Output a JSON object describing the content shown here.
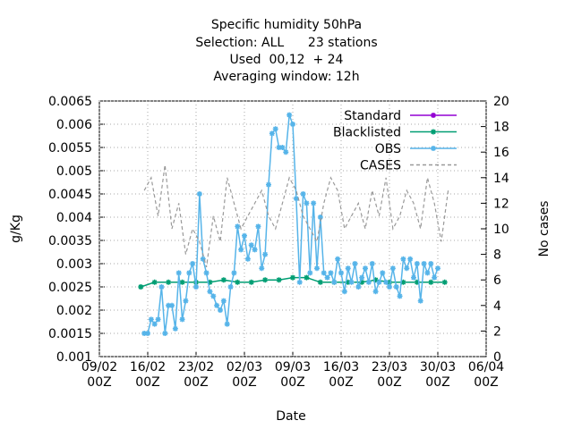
{
  "chart_data": {
    "type": "line",
    "title": [
      "Specific humidity 50hPa",
      "Selection: ALL      23 stations",
      "Used  00,12  + 24",
      "Averaging window: 12h"
    ],
    "xlabel": "Date",
    "ylabel": "g/Kg",
    "y2label": "No cases",
    "xlim": [
      0,
      56
    ],
    "xticks": [
      {
        "value": 0,
        "label": "09/02\n00Z"
      },
      {
        "value": 7,
        "label": "16/02\n00Z"
      },
      {
        "value": 14,
        "label": "23/02\n00Z"
      },
      {
        "value": 21,
        "label": "02/03\n00Z"
      },
      {
        "value": 28,
        "label": "09/03\n00Z"
      },
      {
        "value": 35,
        "label": "16/03\n00Z"
      },
      {
        "value": 42,
        "label": "23/03\n00Z"
      },
      {
        "value": 49,
        "label": "30/03\n00Z"
      },
      {
        "value": 56,
        "label": "06/04\n00Z"
      }
    ],
    "ylim": [
      0.001,
      0.0065
    ],
    "yticks": [
      0.001,
      0.0015,
      0.002,
      0.0025,
      0.003,
      0.0035,
      0.004,
      0.0045,
      0.005,
      0.0055,
      0.006,
      0.0065
    ],
    "y2lim": [
      0,
      20
    ],
    "y2ticks": [
      0,
      2,
      4,
      6,
      8,
      10,
      12,
      14,
      16,
      18,
      20
    ],
    "grid": true,
    "legend": "top-right",
    "series": [
      {
        "name": "Standard",
        "color": "#9400d3",
        "x": [],
        "values": []
      },
      {
        "name": "Blacklisted",
        "color": "#009e73",
        "x": [
          6,
          8,
          10,
          12,
          14,
          16,
          18,
          20,
          22,
          24,
          26,
          28,
          30,
          32,
          34,
          36,
          38,
          40,
          42,
          44,
          46,
          48,
          50
        ],
        "values": [
          0.0025,
          0.0026,
          0.0026,
          0.0026,
          0.0026,
          0.0026,
          0.00265,
          0.0026,
          0.0026,
          0.00265,
          0.00265,
          0.0027,
          0.0027,
          0.0026,
          0.0026,
          0.0026,
          0.0026,
          0.00265,
          0.0026,
          0.0026,
          0.0026,
          0.0026,
          0.0026
        ]
      },
      {
        "name": "OBS",
        "color": "#56b4e9",
        "x": [
          6.5,
          7,
          7.5,
          8,
          8.5,
          9,
          9.5,
          10,
          10.5,
          11,
          11.5,
          12,
          12.5,
          13,
          13.5,
          14,
          14.5,
          15,
          15.5,
          16,
          16.5,
          17,
          17.5,
          18,
          18.5,
          19,
          19.5,
          20,
          20.5,
          21,
          21.5,
          22,
          22.5,
          23,
          23.5,
          24,
          24.5,
          25,
          25.5,
          26,
          26.5,
          27,
          27.5,
          28,
          28.5,
          29,
          29.5,
          30,
          30.5,
          31,
          31.5,
          32,
          32.5,
          33,
          33.5,
          34,
          34.5,
          35,
          35.5,
          36,
          36.5,
          37,
          37.5,
          38,
          38.5,
          39,
          39.5,
          40,
          40.5,
          41,
          41.5,
          42,
          42.5,
          43,
          43.5,
          44,
          44.5,
          45,
          45.5,
          46,
          46.5,
          47,
          47.5,
          48,
          48.5,
          49
        ],
        "values": [
          0.0015,
          0.0015,
          0.0018,
          0.0017,
          0.0018,
          0.0025,
          0.0015,
          0.0021,
          0.0021,
          0.0016,
          0.0028,
          0.0018,
          0.0022,
          0.0028,
          0.003,
          0.0025,
          0.0045,
          0.0031,
          0.0028,
          0.0024,
          0.0023,
          0.0021,
          0.002,
          0.0022,
          0.0017,
          0.0025,
          0.0028,
          0.0038,
          0.0033,
          0.0036,
          0.0031,
          0.0034,
          0.0033,
          0.0038,
          0.0029,
          0.0032,
          0.0047,
          0.0058,
          0.0059,
          0.0055,
          0.0055,
          0.0054,
          0.0062,
          0.006,
          0.0044,
          0.0026,
          0.0045,
          0.0043,
          0.0028,
          0.0043,
          0.0029,
          0.004,
          0.0028,
          0.0027,
          0.0028,
          0.0026,
          0.0031,
          0.0028,
          0.0024,
          0.0029,
          0.0026,
          0.003,
          0.0025,
          0.0027,
          0.0029,
          0.0026,
          0.003,
          0.0024,
          0.0026,
          0.0028,
          0.0026,
          0.0025,
          0.0029,
          0.0025,
          0.0023,
          0.0031,
          0.0029,
          0.0031,
          0.0027,
          0.003,
          0.0022,
          0.003,
          0.0028,
          0.003,
          0.0027,
          0.0029
        ]
      },
      {
        "name": "CASES",
        "color": "#999999",
        "axis": "y2",
        "dashed": true,
        "x": [
          6.5,
          7.5,
          8.5,
          9.5,
          10.5,
          11.5,
          12.5,
          13.5,
          14.5,
          15.5,
          16.5,
          17.5,
          18.5,
          19.5,
          20.5,
          21.5,
          22.5,
          23.5,
          24.5,
          25.5,
          26.5,
          27.5,
          28.5,
          29.5,
          30.5,
          31.5,
          32.5,
          33.5,
          34.5,
          35.5,
          36.5,
          37.5,
          38.5,
          39.5,
          40.5,
          41.5,
          42.5,
          43.5,
          44.5,
          45.5,
          46.5,
          47.5,
          48.5,
          49.5,
          50.5
        ],
        "values": [
          13,
          14,
          11,
          15,
          10,
          12,
          8,
          10,
          9,
          7,
          11,
          9,
          14,
          12,
          10,
          11,
          12,
          13,
          11,
          10,
          12,
          14,
          13,
          11,
          10,
          9,
          12,
          14,
          13,
          10,
          11,
          12,
          10,
          13,
          11,
          14,
          10,
          11,
          13,
          12,
          10,
          14,
          12,
          9,
          13
        ]
      }
    ]
  }
}
